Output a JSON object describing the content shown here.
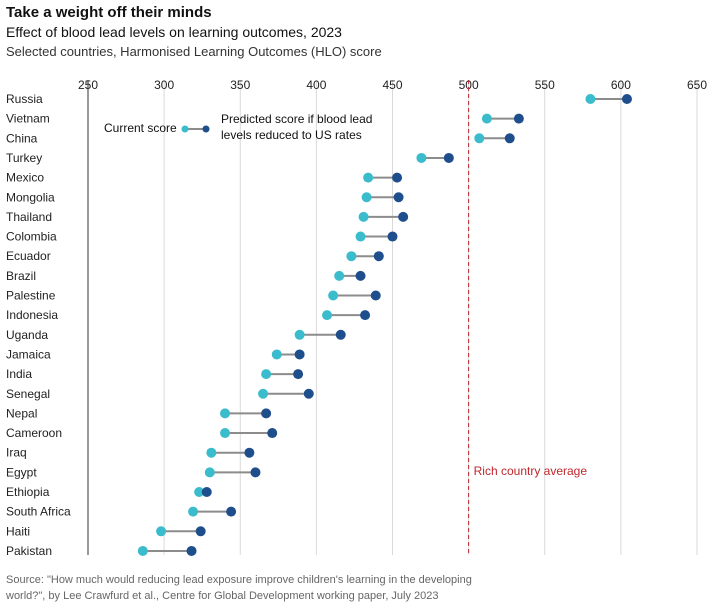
{
  "title": "Take a weight off their minds",
  "subtitle": "Effect of blood lead levels on learning outcomes, 2023",
  "description": "Selected countries, Harmonised Learning Outcomes (HLO) score",
  "source_line1": "Source: \"How much would reducing lead exposure improve children's learning in the developing",
  "source_line2": "world?\", by Lee Crawfurd et al., Centre for Global Development working paper, July 2023",
  "legend": {
    "current": "Current score",
    "predicted_line1": "Predicted score if blood lead",
    "predicted_line2": "levels reduced to US rates"
  },
  "colors": {
    "current": "#3bbccc",
    "predicted": "#1f4e8c",
    "connector": "#8c8c8c",
    "reference": "#c0272d",
    "grid": "#d9d9d9"
  },
  "chart_data": {
    "type": "dumbbell",
    "xlim": [
      250,
      650
    ],
    "x_ticks": [
      "250",
      "300",
      "350",
      "400",
      "450",
      "500",
      "550",
      "600",
      "650"
    ],
    "reference_line": {
      "value": 500,
      "label": "Rich country average"
    },
    "series": [
      {
        "name": "Current score",
        "key": "current"
      },
      {
        "name": "Predicted score if blood lead levels reduced to US rates",
        "key": "predicted"
      }
    ],
    "points": [
      {
        "country": "Russia",
        "current": 580,
        "predicted": 604
      },
      {
        "country": "Vietnam",
        "current": 512,
        "predicted": 533
      },
      {
        "country": "China",
        "current": 507,
        "predicted": 527
      },
      {
        "country": "Turkey",
        "current": 469,
        "predicted": 487
      },
      {
        "country": "Mexico",
        "current": 434,
        "predicted": 453
      },
      {
        "country": "Mongolia",
        "current": 433,
        "predicted": 454
      },
      {
        "country": "Thailand",
        "current": 431,
        "predicted": 457
      },
      {
        "country": "Colombia",
        "current": 429,
        "predicted": 450
      },
      {
        "country": "Ecuador",
        "current": 423,
        "predicted": 441
      },
      {
        "country": "Brazil",
        "current": 415,
        "predicted": 429
      },
      {
        "country": "Palestine",
        "current": 411,
        "predicted": 439
      },
      {
        "country": "Indonesia",
        "current": 407,
        "predicted": 432
      },
      {
        "country": "Uganda",
        "current": 389,
        "predicted": 416
      },
      {
        "country": "Jamaica",
        "current": 374,
        "predicted": 389
      },
      {
        "country": "India",
        "current": 367,
        "predicted": 388
      },
      {
        "country": "Senegal",
        "current": 365,
        "predicted": 395
      },
      {
        "country": "Nepal",
        "current": 340,
        "predicted": 367
      },
      {
        "country": "Cameroon",
        "current": 340,
        "predicted": 371
      },
      {
        "country": "Iraq",
        "current": 331,
        "predicted": 356
      },
      {
        "country": "Egypt",
        "current": 330,
        "predicted": 360
      },
      {
        "country": "Ethiopia",
        "current": 323,
        "predicted": 328
      },
      {
        "country": "South Africa",
        "current": 319,
        "predicted": 344
      },
      {
        "country": "Haiti",
        "current": 298,
        "predicted": 324
      },
      {
        "country": "Pakistan",
        "current": 286,
        "predicted": 318
      }
    ]
  }
}
